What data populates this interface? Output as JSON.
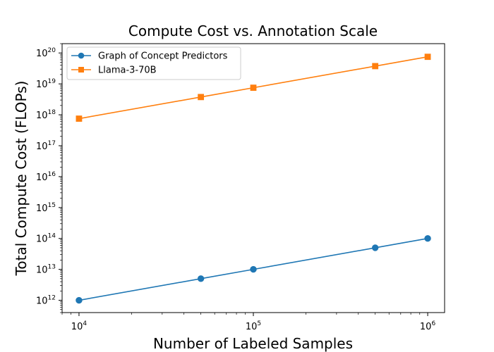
{
  "chart_data": {
    "type": "line",
    "title": "Compute Cost vs. Annotation Scale",
    "xlabel": "Number of Labeled Samples",
    "ylabel": "Total Compute Cost (FLOPs)",
    "xscale": "log",
    "yscale": "log",
    "xlim": [
      8000,
      1250000
    ],
    "ylim": [
      400000000000.0,
      2e+20
    ],
    "xticks": [
      {
        "value": 10000,
        "base": "10",
        "exp": "4"
      },
      {
        "value": 100000,
        "base": "10",
        "exp": "5"
      },
      {
        "value": 1000000,
        "base": "10",
        "exp": "6"
      }
    ],
    "yticks": [
      {
        "value": 1000000000000.0,
        "base": "10",
        "exp": "12"
      },
      {
        "value": 10000000000000.0,
        "base": "10",
        "exp": "13"
      },
      {
        "value": 100000000000000.0,
        "base": "10",
        "exp": "14"
      },
      {
        "value": 1000000000000000.0,
        "base": "10",
        "exp": "15"
      },
      {
        "value": 1e+16,
        "base": "10",
        "exp": "16"
      },
      {
        "value": 1e+17,
        "base": "10",
        "exp": "17"
      },
      {
        "value": 1e+18,
        "base": "10",
        "exp": "18"
      },
      {
        "value": 1e+19,
        "base": "10",
        "exp": "19"
      },
      {
        "value": 1e+20,
        "base": "10",
        "exp": "20"
      }
    ],
    "legend_position": "top-left",
    "grid": false,
    "series": [
      {
        "name": "Graph of Concept Predictors",
        "color": "#1f77b4",
        "marker": "circle",
        "x": [
          10000,
          50000,
          100000,
          500000,
          1000000
        ],
        "y": [
          1000000000000.0,
          5000000000000.0,
          10000000000000.0,
          50000000000000.0,
          100000000000000.0
        ]
      },
      {
        "name": "Llama-3-70B",
        "color": "#ff7f0e",
        "marker": "square",
        "x": [
          10000,
          50000,
          100000,
          500000,
          1000000
        ],
        "y": [
          7.5e+17,
          3.75e+18,
          7.5e+18,
          3.75e+19,
          7.5e+19
        ]
      }
    ]
  }
}
